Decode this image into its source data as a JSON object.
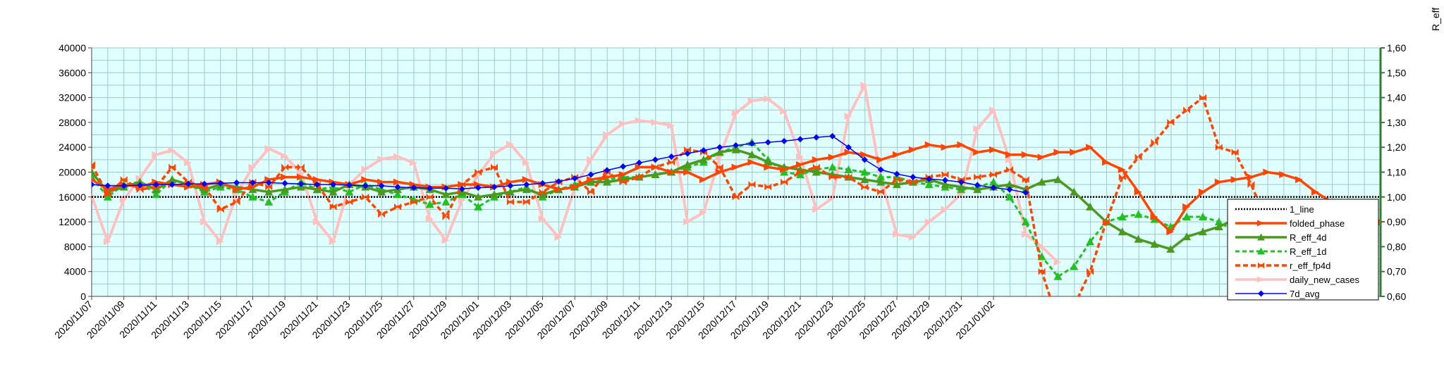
{
  "chart_data": {
    "type": "line",
    "title": "",
    "xlabel": "",
    "ylabel": "",
    "y2label": "R_eff",
    "ylim": [
      0,
      40000
    ],
    "yticks": [
      0,
      4000,
      8000,
      12000,
      16000,
      20000,
      24000,
      28000,
      32000,
      36000,
      40000
    ],
    "y2lim": [
      0.6,
      1.6
    ],
    "y2ticks": [
      "0,60",
      "0,70",
      "0,80",
      "0,90",
      "1,00",
      "1,10",
      "1,20",
      "1,30",
      "1,40",
      "1,50",
      "1,60"
    ],
    "grid": true,
    "plot_background": "#e0ffff",
    "grid_color": "#9ec7c7",
    "right_axis_color": "#2e7d32",
    "legend_position": "right",
    "x_first_date": "2020/11/07",
    "x_count": 81,
    "x_tick_labels": [
      "2020/11/07",
      "2020/11/09",
      "2020/11/11",
      "2020/11/13",
      "2020/11/15",
      "2020/11/17",
      "2020/11/19",
      "2020/11/21",
      "2020/11/23",
      "2020/11/25",
      "2020/11/27",
      "2020/11/29",
      "2020/12/01",
      "2020/12/03",
      "2020/12/05",
      "2020/12/07",
      "2020/12/09",
      "2020/12/11",
      "2020/12/13",
      "2020/12/15",
      "2020/12/17",
      "2020/12/19",
      "2020/12/21",
      "2020/12/23",
      "2020/12/25",
      "2020/12/27",
      "2020/12/29",
      "2020/12/31",
      "2021/01/02"
    ],
    "series": [
      {
        "name": "1_line",
        "axis": "right",
        "color": "#000000",
        "dash": "2,2",
        "width": 2.5,
        "marker": "none",
        "start": 0,
        "values": [
          1.0,
          1.0,
          1.0,
          1.0,
          1.0,
          1.0,
          1.0,
          1.0,
          1.0,
          1.0,
          1.0,
          1.0,
          1.0,
          1.0,
          1.0,
          1.0,
          1.0,
          1.0,
          1.0,
          1.0,
          1.0,
          1.0,
          1.0,
          1.0,
          1.0,
          1.0,
          1.0,
          1.0,
          1.0,
          1.0,
          1.0,
          1.0,
          1.0,
          1.0,
          1.0,
          1.0,
          1.0,
          1.0,
          1.0,
          1.0,
          1.0,
          1.0,
          1.0,
          1.0,
          1.0,
          1.0,
          1.0,
          1.0,
          1.0,
          1.0,
          1.0,
          1.0,
          1.0,
          1.0,
          1.0,
          1.0,
          1.0,
          1.0,
          1.0,
          1.0,
          1.0,
          1.0,
          1.0,
          1.0,
          1.0,
          1.0,
          1.0,
          1.0,
          1.0,
          1.0,
          1.0,
          1.0,
          1.0,
          1.0,
          1.0,
          1.0,
          1.0,
          1.0,
          1.0,
          1.0,
          1.0
        ]
      },
      {
        "name": "folded_phase",
        "axis": "right",
        "color": "#ff4500",
        "dash": "",
        "width": 3.5,
        "marker": "arrow",
        "start": 0,
        "values": [
          1.07,
          1.03,
          1.05,
          1.04,
          1.06,
          1.05,
          1.04,
          1.05,
          1.06,
          1.03,
          1.04,
          1.07,
          1.08,
          1.08,
          1.07,
          1.06,
          1.05,
          1.07,
          1.06,
          1.06,
          1.05,
          1.04,
          1.04,
          1.05,
          1.05,
          1.04,
          1.06,
          1.07,
          1.05,
          1.03,
          1.04,
          1.07,
          1.08,
          1.09,
          1.12,
          1.12,
          1.1,
          1.1,
          1.07,
          1.1,
          1.12,
          1.14,
          1.12,
          1.11,
          1.13,
          1.15,
          1.16,
          1.18,
          1.17,
          1.15,
          1.17,
          1.19,
          1.21,
          1.2,
          1.21,
          1.18,
          1.19,
          1.17,
          1.17,
          1.16,
          1.18,
          1.18,
          1.2,
          1.14,
          1.11,
          1.02,
          0.92,
          0.86,
          0.96,
          1.02,
          1.06,
          1.07,
          1.08,
          1.1,
          1.09,
          1.07,
          1.02,
          0.98,
          0.95,
          0.92,
          0.9
        ]
      },
      {
        "name": "R_eff_4d",
        "axis": "right",
        "color": "#4a9a1f",
        "dash": "",
        "width": 3.5,
        "marker": "triangle",
        "start": 0,
        "values": [
          1.1,
          1.02,
          1.04,
          1.06,
          1.03,
          1.07,
          1.05,
          1.03,
          1.05,
          1.04,
          1.03,
          1.02,
          1.03,
          1.04,
          1.03,
          1.02,
          1.05,
          1.04,
          1.02,
          1.03,
          1.04,
          1.03,
          1.01,
          1.02,
          1.0,
          1.01,
          1.02,
          1.03,
          1.01,
          1.03,
          1.04,
          1.06,
          1.06,
          1.07,
          1.08,
          1.09,
          1.1,
          1.13,
          1.15,
          1.18,
          1.19,
          1.17,
          1.14,
          1.12,
          1.11,
          1.1,
          1.09,
          1.08,
          1.07,
          1.06,
          1.05,
          1.06,
          1.07,
          1.05,
          1.04,
          1.03,
          1.04,
          1.05,
          1.03,
          1.06,
          1.07,
          1.02,
          0.96,
          0.9,
          0.86,
          0.83,
          0.81,
          0.79,
          0.84,
          0.86,
          0.88,
          0.91,
          0.92,
          0.92,
          0.93,
          0.93,
          0.92,
          0.91,
          0.89,
          0.88,
          0.9
        ]
      },
      {
        "name": "R_eff_1d",
        "axis": "right",
        "color": "#22c022",
        "dash": "6,4",
        "width": 3,
        "marker": "triangle",
        "start": 0,
        "values": [
          1.08,
          1.0,
          1.05,
          1.06,
          1.01,
          1.07,
          1.05,
          1.02,
          1.04,
          1.03,
          1.0,
          0.98,
          1.02,
          1.06,
          1.03,
          1.04,
          1.02,
          1.05,
          1.03,
          1.01,
          0.99,
          0.97,
          0.98,
          1.01,
          0.96,
          1.0,
          1.02,
          1.04,
          1.0,
          1.03,
          1.05,
          1.06,
          1.07,
          1.08,
          1.08,
          1.09,
          1.1,
          1.12,
          1.14,
          1.18,
          1.2,
          1.22,
          1.15,
          1.1,
          1.09,
          1.11,
          1.12,
          1.11,
          1.1,
          1.08,
          1.08,
          1.06,
          1.05,
          1.04,
          1.03,
          1.04,
          1.06,
          1.0,
          0.9,
          0.76,
          0.68,
          0.72,
          0.82,
          0.9,
          0.92,
          0.93,
          0.91,
          0.88,
          0.92,
          0.92,
          0.9,
          0.86
        ]
      },
      {
        "name": "r_eff_fp4d",
        "axis": "right",
        "color": "#ff4500",
        "dash": "7,4",
        "width": 3.5,
        "marker": "bowtie",
        "start": 0,
        "values": [
          1.13,
          1.01,
          1.07,
          1.03,
          1.04,
          1.12,
          1.06,
          1.04,
          0.95,
          0.98,
          1.06,
          1.04,
          1.12,
          1.12,
          1.05,
          0.96,
          0.98,
          1.0,
          0.93,
          0.96,
          0.98,
          1.0,
          0.92,
          1.05,
          1.1,
          1.12,
          0.98,
          0.98,
          1.02,
          1.06,
          1.08,
          1.02,
          1.1,
          1.06,
          1.08,
          1.12,
          1.14,
          1.19,
          1.18,
          1.12,
          1.0,
          1.05,
          1.04,
          1.06,
          1.1,
          1.12,
          1.08,
          1.08,
          1.04,
          1.02,
          1.07,
          1.06,
          1.08,
          1.09,
          1.07,
          1.08,
          1.09,
          1.11,
          1.07,
          0.7,
          0.5,
          0.56,
          0.7,
          0.9,
          1.08,
          1.16,
          1.22,
          1.3,
          1.35,
          1.4,
          1.2,
          1.18,
          1.05,
          0.9,
          0.72,
          0.6
        ]
      },
      {
        "name": "daily_new_cases",
        "axis": "left",
        "color": "#ffc0c0",
        "dash": "",
        "width": 4,
        "marker": "arrow",
        "start": 0,
        "values": [
          16200,
          8800,
          15600,
          19000,
          22800,
          23500,
          21500,
          12000,
          8800,
          16500,
          20800,
          23800,
          22600,
          19800,
          12000,
          8800,
          18000,
          20500,
          22100,
          22500,
          21500,
          12500,
          9000,
          15500,
          19500,
          23000,
          24500,
          21500,
          12500,
          9500,
          17500,
          22000,
          26000,
          27800,
          28300,
          28000,
          27500,
          12000,
          13500,
          22500,
          29500,
          31500,
          31800,
          29800,
          22500,
          14000,
          15800,
          29000,
          34000,
          19000,
          10000,
          9500,
          12000,
          14000,
          16500,
          27000,
          30000,
          22000,
          10000,
          8000,
          5500
        ]
      },
      {
        "name": "7d_avg",
        "axis": "left",
        "color": "#0000ff",
        "dash": "",
        "width": 1.5,
        "marker": "diamond",
        "start": 0,
        "values": [
          18000,
          17800,
          17800,
          17900,
          18000,
          18000,
          18100,
          18100,
          18200,
          18300,
          18300,
          18300,
          18200,
          18100,
          18000,
          18000,
          17900,
          17800,
          17800,
          17600,
          17500,
          17400,
          17400,
          17300,
          17500,
          17600,
          17800,
          18000,
          18200,
          18500,
          19000,
          19600,
          20300,
          20900,
          21500,
          22000,
          22500,
          23000,
          23500,
          24000,
          24300,
          24600,
          24800,
          25000,
          25300,
          25600,
          25800,
          24000,
          22000,
          20400,
          19700,
          19200,
          18900,
          18700,
          18400,
          17900,
          17500,
          17200,
          16700
        ]
      }
    ]
  }
}
